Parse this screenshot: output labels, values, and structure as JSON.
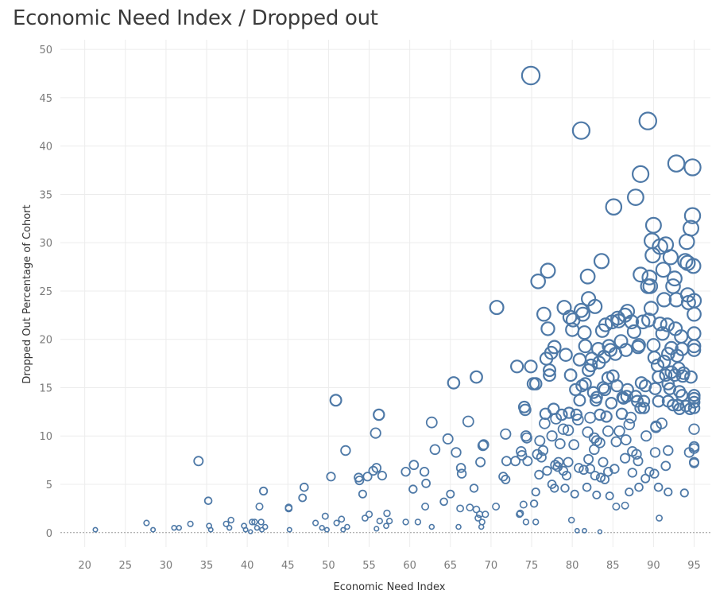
{
  "chart_data": {
    "type": "scatter",
    "title": "Economic Need Index / Dropped out",
    "xlabel": "Economic Need Index",
    "ylabel": "Dropped Out Percentage of Cohort",
    "xlim": [
      17,
      97
    ],
    "ylim": [
      -1.5,
      51
    ],
    "x_ticks": [
      20,
      25,
      30,
      35,
      40,
      45,
      50,
      55,
      60,
      65,
      70,
      75,
      80,
      85,
      90,
      95
    ],
    "y_ticks": [
      0,
      5,
      10,
      15,
      20,
      25,
      30,
      35,
      40,
      45,
      50
    ],
    "grid": true,
    "marker": "circle (hollow, size by y value)",
    "colors": {
      "marker": "#4e79a7",
      "grid": "#ececec",
      "zero_line": "#9a9a9a"
    },
    "points": [
      [
        21.3,
        0.3
      ],
      [
        27.6,
        1.0
      ],
      [
        28.4,
        0.3
      ],
      [
        31.0,
        0.5
      ],
      [
        31.6,
        0.5
      ],
      [
        33.0,
        0.9
      ],
      [
        34.0,
        7.4
      ],
      [
        35.2,
        3.3
      ],
      [
        35.3,
        0.7
      ],
      [
        35.5,
        0.3
      ],
      [
        37.4,
        0.9
      ],
      [
        37.8,
        0.5
      ],
      [
        38.0,
        1.3
      ],
      [
        39.6,
        0.7
      ],
      [
        39.8,
        0.3
      ],
      [
        40.4,
        0.1
      ],
      [
        40.6,
        1.1
      ],
      [
        40.9,
        1.1
      ],
      [
        41.2,
        0.5
      ],
      [
        41.5,
        2.7
      ],
      [
        41.7,
        1.1
      ],
      [
        41.8,
        0.3
      ],
      [
        42.0,
        4.3
      ],
      [
        42.2,
        0.6
      ],
      [
        45.1,
        2.5
      ],
      [
        45.1,
        2.6
      ],
      [
        45.2,
        0.3
      ],
      [
        46.8,
        3.6
      ],
      [
        47.0,
        4.7
      ],
      [
        48.4,
        1.0
      ],
      [
        49.2,
        0.5
      ],
      [
        49.8,
        0.3
      ],
      [
        49.6,
        1.7
      ],
      [
        50.3,
        5.8
      ],
      [
        50.9,
        13.7
      ],
      [
        51.0,
        1.0
      ],
      [
        51.8,
        0.3
      ],
      [
        51.6,
        1.4
      ],
      [
        52.1,
        8.5
      ],
      [
        52.3,
        0.6
      ],
      [
        53.7,
        5.7
      ],
      [
        53.8,
        5.4
      ],
      [
        54.2,
        4.0
      ],
      [
        54.5,
        1.5
      ],
      [
        54.8,
        5.8
      ],
      [
        55.0,
        1.9
      ],
      [
        55.5,
        6.4
      ],
      [
        55.9,
        6.7
      ],
      [
        55.8,
        10.3
      ],
      [
        56.2,
        12.2
      ],
      [
        55.9,
        0.4
      ],
      [
        56.3,
        1.2
      ],
      [
        56.6,
        5.9
      ],
      [
        57.1,
        0.7
      ],
      [
        57.2,
        2.0
      ],
      [
        57.5,
        1.2
      ],
      [
        59.5,
        6.3
      ],
      [
        59.5,
        1.1
      ],
      [
        60.4,
        4.5
      ],
      [
        60.5,
        7.0
      ],
      [
        61.0,
        1.1
      ],
      [
        61.8,
        6.3
      ],
      [
        61.9,
        2.7
      ],
      [
        62.0,
        5.1
      ],
      [
        62.7,
        0.6
      ],
      [
        62.7,
        11.4
      ],
      [
        63.1,
        8.6
      ],
      [
        64.2,
        3.2
      ],
      [
        64.7,
        9.7
      ],
      [
        65.0,
        4.0
      ],
      [
        65.4,
        15.5
      ],
      [
        65.7,
        8.3
      ],
      [
        66.0,
        0.6
      ],
      [
        66.2,
        2.5
      ],
      [
        66.3,
        6.7
      ],
      [
        66.4,
        6.1
      ],
      [
        67.2,
        11.5
      ],
      [
        67.4,
        2.6
      ],
      [
        67.9,
        4.6
      ],
      [
        68.2,
        16.1
      ],
      [
        68.2,
        2.4
      ],
      [
        68.4,
        1.5
      ],
      [
        68.6,
        1.9
      ],
      [
        68.8,
        0.6
      ],
      [
        68.9,
        1.1
      ],
      [
        68.7,
        7.3
      ],
      [
        69.0,
        9.0
      ],
      [
        69.1,
        9.1
      ],
      [
        69.3,
        1.9
      ],
      [
        70.7,
        23.3
      ],
      [
        70.6,
        2.7
      ],
      [
        71.5,
        5.8
      ],
      [
        71.8,
        5.5
      ],
      [
        71.9,
        7.4
      ],
      [
        71.8,
        10.2
      ],
      [
        73.2,
        17.2
      ],
      [
        73.5,
        1.9
      ],
      [
        73.6,
        2.0
      ],
      [
        73.7,
        8.4
      ],
      [
        73.8,
        8.0
      ],
      [
        74.1,
        13.0
      ],
      [
        74.2,
        12.7
      ],
      [
        74.4,
        9.8
      ],
      [
        74.0,
        2.9
      ],
      [
        74.3,
        10.0
      ],
      [
        74.3,
        1.1
      ],
      [
        74.5,
        7.4
      ],
      [
        74.9,
        47.3
      ],
      [
        74.9,
        17.2
      ],
      [
        75.2,
        15.4
      ],
      [
        75.5,
        15.4
      ],
      [
        75.3,
        3.0
      ],
      [
        75.7,
        8.1
      ],
      [
        75.5,
        4.2
      ],
      [
        75.5,
        1.1
      ],
      [
        75.8,
        26.0
      ],
      [
        76.0,
        9.5
      ],
      [
        76.2,
        7.8
      ],
      [
        76.4,
        8.5
      ],
      [
        76.5,
        22.6
      ],
      [
        76.6,
        11.3
      ],
      [
        76.7,
        12.3
      ],
      [
        76.8,
        18.0
      ],
      [
        77.0,
        27.1
      ],
      [
        77.0,
        21.1
      ],
      [
        77.2,
        16.8
      ],
      [
        77.2,
        16.3
      ],
      [
        77.4,
        18.6
      ],
      [
        77.5,
        5.0
      ],
      [
        77.5,
        10.0
      ],
      [
        77.7,
        12.8
      ],
      [
        77.8,
        4.6
      ],
      [
        77.8,
        19.2
      ],
      [
        77.9,
        7.0
      ],
      [
        78.0,
        11.8
      ],
      [
        78.3,
        7.3
      ],
      [
        78.5,
        9.2
      ],
      [
        78.7,
        12.2
      ],
      [
        78.9,
        6.4
      ],
      [
        79.0,
        23.3
      ],
      [
        79.2,
        18.4
      ],
      [
        79.3,
        5.9
      ],
      [
        79.5,
        10.6
      ],
      [
        79.6,
        12.4
      ],
      [
        79.7,
        22.3
      ],
      [
        79.8,
        16.3
      ],
      [
        80.0,
        21.0
      ],
      [
        80.1,
        22.0
      ],
      [
        80.2,
        9.1
      ],
      [
        80.4,
        14.8
      ],
      [
        80.5,
        12.2
      ],
      [
        80.7,
        11.7
      ],
      [
        80.9,
        13.7
      ],
      [
        80.9,
        17.9
      ],
      [
        81.1,
        41.6
      ],
      [
        81.1,
        23.0
      ],
      [
        81.2,
        15.2
      ],
      [
        81.3,
        22.6
      ],
      [
        81.4,
        6.5
      ],
      [
        81.5,
        20.7
      ],
      [
        81.6,
        19.3
      ],
      [
        81.6,
        15.4
      ],
      [
        81.9,
        10.4
      ],
      [
        81.9,
        26.5
      ],
      [
        82.0,
        24.2
      ],
      [
        82.0,
        16.8
      ],
      [
        82.2,
        6.6
      ],
      [
        82.2,
        11.9
      ],
      [
        82.3,
        17.3
      ],
      [
        82.4,
        18.0
      ],
      [
        82.6,
        14.5
      ],
      [
        82.8,
        23.4
      ],
      [
        82.7,
        8.6
      ],
      [
        82.9,
        13.7
      ],
      [
        83.0,
        14.0
      ],
      [
        83.2,
        19.0
      ],
      [
        83.3,
        17.6
      ],
      [
        83.4,
        9.3
      ],
      [
        83.4,
        12.2
      ],
      [
        83.6,
        28.1
      ],
      [
        83.7,
        20.9
      ],
      [
        83.8,
        15.0
      ],
      [
        83.9,
        18.2
      ],
      [
        84.0,
        14.8
      ],
      [
        84.1,
        21.5
      ],
      [
        84.2,
        12.0
      ],
      [
        84.4,
        10.5
      ],
      [
        84.4,
        16.0
      ],
      [
        84.5,
        19.3
      ],
      [
        84.7,
        18.9
      ],
      [
        84.8,
        13.4
      ],
      [
        84.9,
        21.8
      ],
      [
        85.0,
        16.2
      ],
      [
        85.1,
        33.7
      ],
      [
        85.3,
        18.5
      ],
      [
        85.5,
        15.2
      ],
      [
        85.6,
        22.2
      ],
      [
        85.7,
        21.9
      ],
      [
        85.8,
        10.5
      ],
      [
        86.0,
        19.8
      ],
      [
        86.1,
        12.3
      ],
      [
        86.2,
        14.0
      ],
      [
        86.3,
        13.9
      ],
      [
        86.5,
        22.5
      ],
      [
        86.6,
        18.9
      ],
      [
        86.6,
        9.6
      ],
      [
        86.7,
        14.1
      ],
      [
        86.8,
        14.8
      ],
      [
        86.8,
        22.9
      ],
      [
        87.0,
        11.2
      ],
      [
        87.2,
        11.9
      ],
      [
        87.3,
        21.8
      ],
      [
        87.4,
        8.4
      ],
      [
        87.6,
        20.8
      ],
      [
        87.8,
        34.7
      ],
      [
        87.8,
        14.1
      ],
      [
        88.0,
        13.6
      ],
      [
        88.1,
        19.2
      ],
      [
        88.2,
        19.4
      ],
      [
        88.4,
        37.1
      ],
      [
        88.4,
        26.7
      ],
      [
        88.4,
        12.9
      ],
      [
        88.5,
        15.5
      ],
      [
        88.7,
        21.8
      ],
      [
        88.8,
        12.9
      ],
      [
        88.8,
        13.6
      ],
      [
        89.0,
        15.2
      ],
      [
        89.1,
        10.0
      ],
      [
        89.3,
        42.6
      ],
      [
        89.4,
        22.0
      ],
      [
        89.3,
        25.5
      ],
      [
        89.5,
        26.4
      ],
      [
        89.6,
        25.5
      ],
      [
        89.7,
        23.2
      ],
      [
        89.8,
        30.2
      ],
      [
        89.9,
        28.7
      ],
      [
        90.0,
        19.4
      ],
      [
        90.0,
        31.8
      ],
      [
        90.1,
        18.1
      ],
      [
        90.2,
        14.9
      ],
      [
        90.3,
        11.0
      ],
      [
        90.3,
        10.9
      ],
      [
        90.5,
        17.3
      ],
      [
        90.6,
        16.1
      ],
      [
        90.6,
        13.6
      ],
      [
        90.8,
        29.6
      ],
      [
        90.8,
        21.6
      ],
      [
        91.0,
        11.3
      ],
      [
        91.1,
        20.6
      ],
      [
        91.2,
        27.2
      ],
      [
        91.3,
        24.1
      ],
      [
        91.3,
        17.7
      ],
      [
        91.5,
        29.8
      ],
      [
        91.5,
        16.3
      ],
      [
        91.7,
        21.5
      ],
      [
        91.8,
        18.5
      ],
      [
        91.8,
        15.4
      ],
      [
        91.8,
        13.6
      ],
      [
        92.0,
        14.9
      ],
      [
        92.1,
        28.5
      ],
      [
        92.2,
        19.1
      ],
      [
        92.2,
        16.6
      ],
      [
        92.4,
        25.5
      ],
      [
        92.4,
        13.2
      ],
      [
        92.6,
        26.3
      ],
      [
        92.6,
        16.3
      ],
      [
        92.7,
        21.1
      ],
      [
        92.8,
        38.2
      ],
      [
        92.8,
        24.1
      ],
      [
        92.9,
        18.3
      ],
      [
        93.0,
        13.2
      ],
      [
        93.1,
        17.0
      ],
      [
        93.2,
        14.6
      ],
      [
        93.4,
        20.3
      ],
      [
        93.5,
        19.0
      ],
      [
        93.5,
        14.2
      ],
      [
        93.6,
        16.2
      ],
      [
        93.7,
        16.5
      ],
      [
        93.9,
        28.1
      ],
      [
        94.0,
        13.1
      ],
      [
        94.1,
        30.1
      ],
      [
        94.2,
        27.9
      ],
      [
        94.2,
        24.6
      ],
      [
        94.3,
        23.8
      ],
      [
        94.5,
        12.8
      ],
      [
        94.6,
        31.5
      ],
      [
        94.8,
        37.8
      ],
      [
        94.8,
        32.8
      ],
      [
        94.9,
        27.6
      ],
      [
        95.0,
        24.0
      ],
      [
        95.0,
        22.6
      ],
      [
        95.0,
        20.6
      ],
      [
        95.0,
        19.3
      ],
      [
        95.0,
        18.9
      ],
      [
        95.0,
        14.2
      ],
      [
        95.0,
        13.9
      ],
      [
        95.0,
        13.5
      ],
      [
        95.0,
        12.9
      ],
      [
        95.0,
        10.7
      ],
      [
        95.0,
        8.9
      ],
      [
        95.0,
        8.7
      ],
      [
        95.0,
        7.3
      ],
      [
        95.0,
        7.2
      ],
      [
        94.4,
        8.3
      ],
      [
        94.6,
        16.1
      ],
      [
        93.2,
        12.8
      ],
      [
        91.8,
        8.5
      ],
      [
        91.5,
        6.9
      ],
      [
        90.2,
        8.3
      ],
      [
        89.5,
        6.3
      ],
      [
        88.1,
        7.4
      ],
      [
        87.9,
        8.1
      ],
      [
        87.4,
        6.2
      ],
      [
        86.5,
        7.7
      ],
      [
        85.4,
        9.4
      ],
      [
        85.2,
        6.6
      ],
      [
        84.4,
        6.3
      ],
      [
        83.8,
        7.3
      ],
      [
        83.0,
        9.5
      ],
      [
        82.0,
        7.6
      ],
      [
        80.3,
        4.0
      ],
      [
        79.5,
        7.3
      ],
      [
        79.1,
        4.6
      ],
      [
        78.2,
        6.8
      ],
      [
        76.9,
        6.4
      ],
      [
        79.9,
        1.3
      ],
      [
        80.6,
        0.2
      ],
      [
        81.5,
        0.2
      ],
      [
        83.4,
        0.1
      ],
      [
        83.5,
        5.7
      ],
      [
        84.0,
        5.5
      ],
      [
        84.6,
        3.8
      ],
      [
        85.4,
        2.7
      ],
      [
        86.5,
        2.8
      ],
      [
        87.0,
        4.2
      ],
      [
        88.2,
        4.7
      ],
      [
        89.0,
        5.6
      ],
      [
        90.1,
        6.1
      ],
      [
        90.6,
        4.7
      ],
      [
        90.7,
        1.5
      ],
      [
        91.8,
        4.2
      ],
      [
        93.8,
        4.1
      ],
      [
        82.7,
        9.8
      ],
      [
        82.8,
        5.9
      ],
      [
        83.0,
        3.9
      ],
      [
        81.8,
        4.7
      ],
      [
        80.8,
        6.7
      ],
      [
        78.9,
        10.7
      ],
      [
        75.9,
        6.0
      ],
      [
        73.0,
        7.4
      ]
    ]
  }
}
